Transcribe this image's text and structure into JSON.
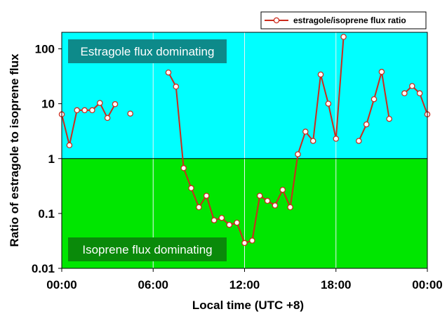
{
  "chart_data": {
    "type": "line",
    "xlabel": "Local time (UTC +8)",
    "ylabel": "Ratio of estragole to isoprene flux",
    "xlim": [
      0,
      24
    ],
    "ylim": [
      0.01,
      200
    ],
    "yscale": "log",
    "x_ticks": [
      0,
      6,
      12,
      18,
      24
    ],
    "x_tick_labels": [
      "00:00",
      "06:00",
      "12:00",
      "18:00",
      "00:00"
    ],
    "y_ticks": [
      0.01,
      0.1,
      1,
      10,
      100
    ],
    "y_tick_labels": [
      "0.01",
      "0.1",
      "1",
      "10",
      "100"
    ],
    "grid": "vertical",
    "legend_position": "top-right",
    "regions": [
      {
        "label": "Estragole flux dominating",
        "y_from": 1,
        "y_to": 200,
        "color": "#00ffff",
        "label_bg": "#0d8a8a"
      },
      {
        "label": "Isoprene flux dominating",
        "y_from": 0.01,
        "y_to": 1,
        "color": "#00e600",
        "label_bg": "#0a8a0a"
      }
    ],
    "series": [
      {
        "name": "estragole/isoprene flux ratio",
        "line_color": "#cc2b1d",
        "marker_fill": "#ffffff",
        "segments": [
          [
            [
              0.0,
              6.4
            ],
            [
              0.5,
              1.75
            ],
            [
              1.0,
              7.6
            ],
            [
              1.5,
              7.6
            ],
            [
              2.0,
              7.6
            ],
            [
              2.5,
              10.3
            ],
            [
              3.0,
              5.5
            ],
            [
              3.5,
              9.8
            ]
          ],
          [
            [
              4.5,
              6.6
            ]
          ],
          [
            [
              7.0,
              37
            ],
            [
              7.5,
              20.5
            ],
            [
              8.0,
              0.67
            ],
            [
              8.5,
              0.29
            ],
            [
              9.0,
              0.13
            ],
            [
              9.5,
              0.21
            ],
            [
              10.0,
              0.075
            ],
            [
              10.5,
              0.083
            ],
            [
              11.0,
              0.062
            ],
            [
              11.5,
              0.068
            ],
            [
              12.0,
              0.029
            ],
            [
              12.5,
              0.032
            ],
            [
              13.0,
              0.21
            ],
            [
              13.5,
              0.17
            ],
            [
              14.0,
              0.14
            ],
            [
              14.5,
              0.27
            ],
            [
              15.0,
              0.13
            ],
            [
              15.5,
              1.2
            ],
            [
              16.0,
              3.1
            ],
            [
              16.5,
              2.1
            ],
            [
              17.0,
              34
            ],
            [
              17.5,
              10
            ],
            [
              18.0,
              2.3
            ],
            [
              18.5,
              165
            ]
          ],
          [
            [
              19.5,
              2.1
            ],
            [
              20.0,
              4.2
            ],
            [
              20.5,
              12.1
            ],
            [
              21.0,
              38
            ],
            [
              21.5,
              5.3
            ]
          ],
          [
            [
              22.5,
              15.5
            ],
            [
              23.0,
              21
            ],
            [
              23.5,
              15.5
            ],
            [
              24.0,
              6.4
            ]
          ]
        ]
      }
    ]
  }
}
